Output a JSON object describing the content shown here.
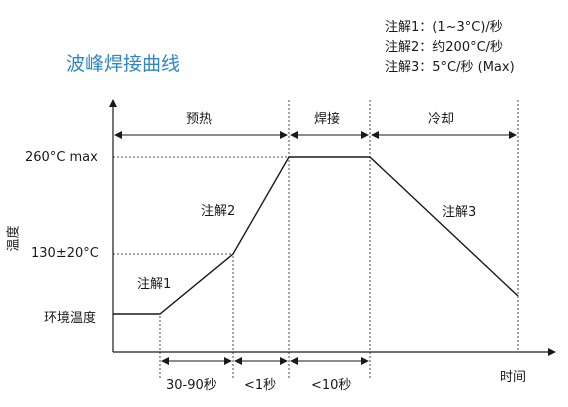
{
  "title": "波峰焊接曲线",
  "notes": [
    "注解1：(1~3°C)/秒",
    "注解2：约200°C/秒",
    "注解3：5°C/秒 (Max)"
  ],
  "axes": {
    "y_label": "温度",
    "x_label": "时间"
  },
  "y_levels": [
    "260°C max",
    "130±20°C",
    "环境温度"
  ],
  "phases": [
    "预热",
    "焊接",
    "冷却"
  ],
  "profile_notes": [
    "注解1",
    "注解2",
    "注解3"
  ],
  "durations": [
    "30-90秒",
    "<1秒",
    "<10秒"
  ],
  "colors": {
    "title": "#2f86c8",
    "line": "#1a1a1a"
  }
}
